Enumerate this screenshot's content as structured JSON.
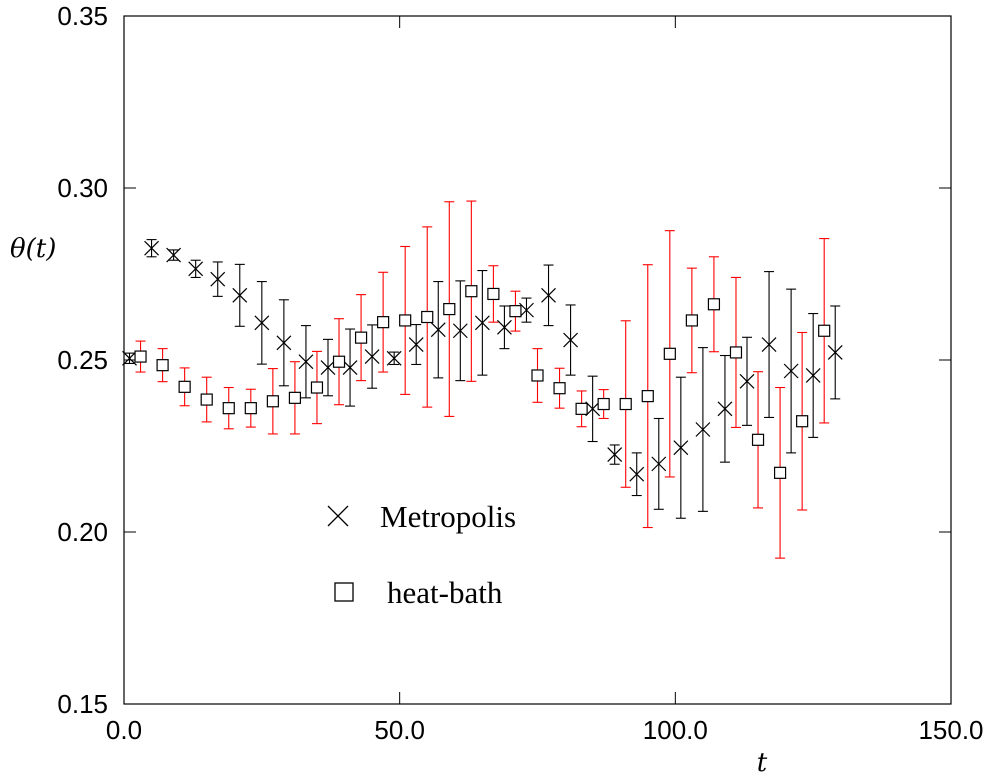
{
  "chart_data": {
    "type": "scatter",
    "title": "",
    "xlabel": "t",
    "ylabel": "θ(t)",
    "xlim": [
      0,
      150
    ],
    "ylim": [
      0.15,
      0.35
    ],
    "xticks": [
      0,
      50,
      100,
      150
    ],
    "xtick_labels": [
      "0.0",
      "50.0",
      "100.0",
      "150.0"
    ],
    "yticks": [
      0.15,
      0.2,
      0.25,
      0.3,
      0.35
    ],
    "ytick_labels": [
      "0.15",
      "0.20",
      "0.25",
      "0.30",
      "0.35"
    ],
    "grid": false,
    "legend_placement": "lower-center",
    "series": [
      {
        "name": "Metropolis",
        "marker": "x",
        "color": "#000000",
        "errorbar_color": "#000000",
        "points": [
          {
            "x": 1,
            "y": 0.2505,
            "err": 0.0015
          },
          {
            "x": 5,
            "y": 0.2825,
            "err": 0.0025
          },
          {
            "x": 9,
            "y": 0.2805,
            "err": 0.0015
          },
          {
            "x": 13,
            "y": 0.2765,
            "err": 0.0025
          },
          {
            "x": 17,
            "y": 0.2735,
            "err": 0.005
          },
          {
            "x": 21,
            "y": 0.2688,
            "err": 0.009
          },
          {
            "x": 25,
            "y": 0.2608,
            "err": 0.012
          },
          {
            "x": 29,
            "y": 0.255,
            "err": 0.0125
          },
          {
            "x": 33,
            "y": 0.2495,
            "err": 0.0105
          },
          {
            "x": 37,
            "y": 0.2478,
            "err": 0.0082
          },
          {
            "x": 41,
            "y": 0.2478,
            "err": 0.0112
          },
          {
            "x": 45,
            "y": 0.251,
            "err": 0.0092
          },
          {
            "x": 49,
            "y": 0.2505,
            "err": 0.0018
          },
          {
            "x": 53,
            "y": 0.2545,
            "err": 0.0058
          },
          {
            "x": 57,
            "y": 0.2588,
            "err": 0.014
          },
          {
            "x": 61,
            "y": 0.2585,
            "err": 0.0145
          },
          {
            "x": 65,
            "y": 0.2608,
            "err": 0.0152
          },
          {
            "x": 69,
            "y": 0.2595,
            "err": 0.0062
          },
          {
            "x": 73,
            "y": 0.2645,
            "err": 0.0035
          },
          {
            "x": 77,
            "y": 0.2688,
            "err": 0.0088
          },
          {
            "x": 81,
            "y": 0.2558,
            "err": 0.0102
          },
          {
            "x": 85,
            "y": 0.2358,
            "err": 0.0095
          },
          {
            "x": 89,
            "y": 0.2225,
            "err": 0.0028
          },
          {
            "x": 93,
            "y": 0.2168,
            "err": 0.0062
          },
          {
            "x": 97,
            "y": 0.2198,
            "err": 0.0132
          },
          {
            "x": 101,
            "y": 0.2245,
            "err": 0.0205
          },
          {
            "x": 105,
            "y": 0.2298,
            "err": 0.0238
          },
          {
            "x": 109,
            "y": 0.2358,
            "err": 0.0155
          },
          {
            "x": 113,
            "y": 0.2438,
            "err": 0.0128
          },
          {
            "x": 117,
            "y": 0.2545,
            "err": 0.0212
          },
          {
            "x": 121,
            "y": 0.2468,
            "err": 0.0238
          },
          {
            "x": 125,
            "y": 0.2455,
            "err": 0.018
          },
          {
            "x": 129,
            "y": 0.2522,
            "err": 0.0135
          }
        ]
      },
      {
        "name": "heat-bath",
        "marker": "square",
        "color": "#000000",
        "errorbar_color": "#ff0000",
        "points": [
          {
            "x": 3,
            "y": 0.251,
            "err": 0.0045
          },
          {
            "x": 7,
            "y": 0.2485,
            "err": 0.0048
          },
          {
            "x": 11,
            "y": 0.2422,
            "err": 0.0055
          },
          {
            "x": 15,
            "y": 0.2385,
            "err": 0.0065
          },
          {
            "x": 19,
            "y": 0.236,
            "err": 0.006
          },
          {
            "x": 23,
            "y": 0.236,
            "err": 0.0055
          },
          {
            "x": 27,
            "y": 0.238,
            "err": 0.0095
          },
          {
            "x": 31,
            "y": 0.239,
            "err": 0.0105
          },
          {
            "x": 35,
            "y": 0.242,
            "err": 0.0105
          },
          {
            "x": 39,
            "y": 0.2495,
            "err": 0.0125
          },
          {
            "x": 43,
            "y": 0.2565,
            "err": 0.0125
          },
          {
            "x": 47,
            "y": 0.261,
            "err": 0.0145
          },
          {
            "x": 51,
            "y": 0.2615,
            "err": 0.0215
          },
          {
            "x": 55,
            "y": 0.2625,
            "err": 0.0262
          },
          {
            "x": 59,
            "y": 0.2648,
            "err": 0.0312
          },
          {
            "x": 63,
            "y": 0.27,
            "err": 0.0262
          },
          {
            "x": 67,
            "y": 0.2692,
            "err": 0.0082
          },
          {
            "x": 71,
            "y": 0.2642,
            "err": 0.0058
          },
          {
            "x": 75,
            "y": 0.2455,
            "err": 0.0078
          },
          {
            "x": 79,
            "y": 0.2418,
            "err": 0.0058
          },
          {
            "x": 83,
            "y": 0.2358,
            "err": 0.0052
          },
          {
            "x": 87,
            "y": 0.2372,
            "err": 0.0042
          },
          {
            "x": 91,
            "y": 0.2372,
            "err": 0.0242
          },
          {
            "x": 95,
            "y": 0.2395,
            "err": 0.0382
          },
          {
            "x": 99,
            "y": 0.2518,
            "err": 0.0358
          },
          {
            "x": 103,
            "y": 0.2615,
            "err": 0.0152
          },
          {
            "x": 107,
            "y": 0.2662,
            "err": 0.0138
          },
          {
            "x": 111,
            "y": 0.2522,
            "err": 0.0218
          },
          {
            "x": 115,
            "y": 0.2268,
            "err": 0.0198
          },
          {
            "x": 119,
            "y": 0.2172,
            "err": 0.0248
          },
          {
            "x": 123,
            "y": 0.2322,
            "err": 0.0258
          },
          {
            "x": 127,
            "y": 0.2585,
            "err": 0.0268
          }
        ]
      }
    ]
  }
}
